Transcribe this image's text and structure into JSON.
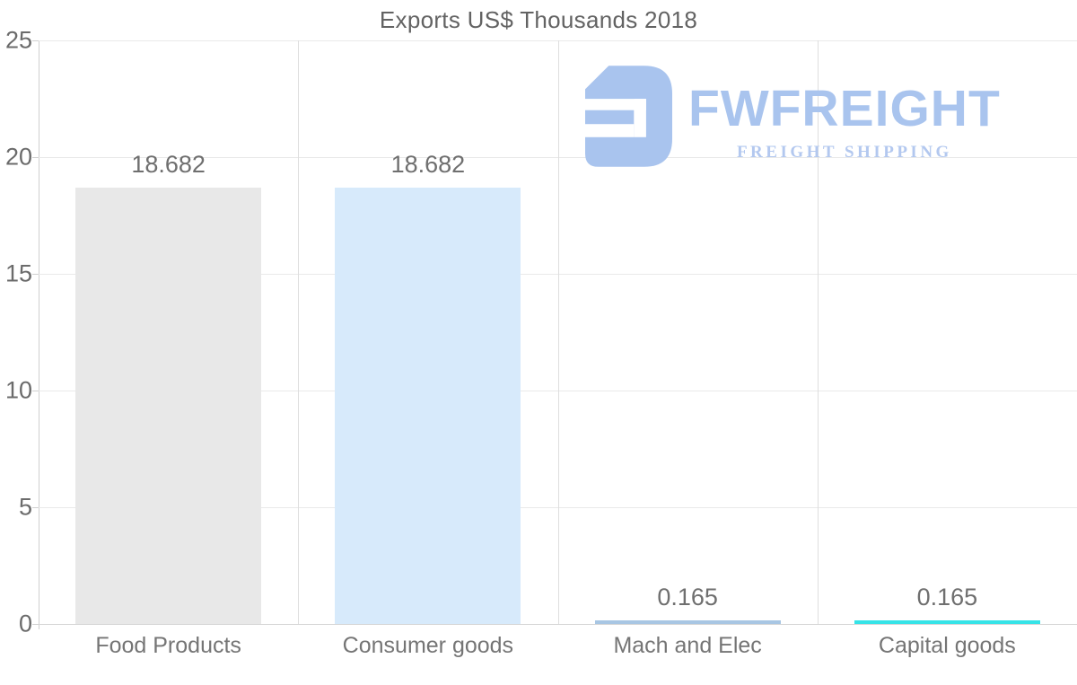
{
  "title": "Exports US$ Thousands 2018",
  "watermark": {
    "brand": "FWFREIGHT",
    "tagline": "FREIGHT SHIPPING",
    "color": "#a9c4ee",
    "tagline_color": "#b3c8ef"
  },
  "chart_data": {
    "type": "bar",
    "title": "Exports US$ Thousands 2018",
    "categories": [
      "Food Products",
      "Consumer goods",
      "Mach and Elec",
      "Capital goods"
    ],
    "values": [
      18.682,
      18.682,
      0.165,
      0.165
    ],
    "value_labels": [
      "18.682",
      "18.682",
      "0.165",
      "0.165"
    ],
    "bar_colors": [
      "#e8e8e8",
      "#d7eafb",
      "#a8c6e3",
      "#36e3e7"
    ],
    "xlabel": "",
    "ylabel": "",
    "ylim": [
      0,
      25
    ],
    "yticks": [
      0,
      5,
      10,
      15,
      20,
      25
    ],
    "grid": true,
    "legend": "none",
    "layout": {
      "grid_color": "#e9e9e9",
      "vgrid_color": "#dedede",
      "axis_color": "#d0d0d0",
      "label_color": "#6f6f6f"
    }
  }
}
